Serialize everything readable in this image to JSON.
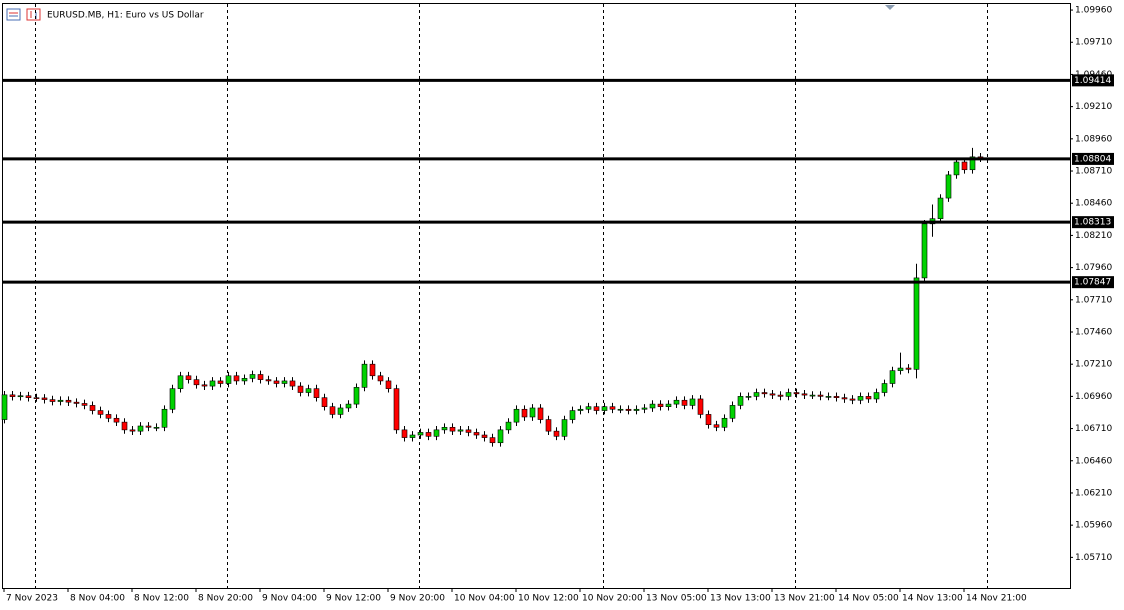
{
  "chart_data": {
    "type": "candlestick",
    "title": "EURUSD.MB, H1:  Euro vs US Dollar",
    "up_color": "#00d200",
    "down_color": "#ff0000",
    "grid": false,
    "categories": [
      "7 Nov 2023",
      null,
      null,
      null,
      null,
      null,
      null,
      null,
      "8 Nov 04:00",
      null,
      null,
      null,
      null,
      null,
      null,
      null,
      "8 Nov 12:00",
      null,
      null,
      null,
      null,
      null,
      null,
      null,
      "8 Nov 20:00",
      null,
      null,
      null,
      null,
      null,
      null,
      null,
      "9 Nov 04:00",
      null,
      null,
      null,
      null,
      null,
      null,
      null,
      "9 Nov 12:00",
      null,
      null,
      null,
      null,
      null,
      null,
      null,
      "9 Nov 20:00",
      null,
      null,
      null,
      null,
      null,
      null,
      null,
      "10 Nov 04:00",
      null,
      null,
      null,
      null,
      null,
      null,
      null,
      "10 Nov 12:00",
      null,
      null,
      null,
      null,
      null,
      null,
      null,
      "10 Nov 20:00",
      null,
      null,
      null,
      null,
      null,
      null,
      null,
      "13 Nov 05:00",
      null,
      null,
      null,
      null,
      null,
      null,
      null,
      "13 Nov 13:00",
      null,
      null,
      null,
      null,
      null,
      null,
      null,
      "13 Nov 21:00",
      null,
      null,
      null,
      null,
      null,
      null,
      null,
      "14 Nov 05:00",
      null,
      null,
      null,
      null,
      null,
      null,
      null,
      "14 Nov 13:00",
      null,
      null,
      null,
      null,
      null,
      null,
      null,
      "14 Nov 21:00",
      null,
      null
    ],
    "open": [
      1.0678,
      1.06972,
      1.06958,
      1.06965,
      1.0695,
      1.06948,
      1.06935,
      1.0692,
      1.0693,
      1.06915,
      1.06905,
      1.0689,
      1.0685,
      1.0682,
      1.0679,
      1.0676,
      1.067,
      1.0669,
      1.0673,
      1.0672,
      1.0672,
      1.0686,
      1.0702,
      1.0712,
      1.0709,
      1.0705,
      1.0704,
      1.0708,
      1.0706,
      1.0712,
      1.0708,
      1.071,
      1.0713,
      1.0709,
      1.0708,
      1.0706,
      1.0708,
      1.0704,
      1.0699,
      1.0702,
      1.0695,
      1.0688,
      1.0682,
      1.0687,
      1.069,
      1.0703,
      1.0721,
      1.0712,
      1.0708,
      1.0702,
      1.067,
      1.0664,
      1.0666,
      1.0668,
      1.0665,
      1.067,
      1.0672,
      1.0669,
      1.067,
      1.0668,
      1.0666,
      1.0664,
      1.066,
      1.067,
      1.0676,
      1.0686,
      1.068,
      1.0687,
      1.0678,
      1.0669,
      1.0665,
      1.0678,
      1.0685,
      1.0686,
      1.0688,
      1.0685,
      1.0688,
      1.0686,
      1.0686,
      1.0685,
      1.0686,
      1.0687,
      1.069,
      1.0688,
      1.069,
      1.0693,
      1.0689,
      1.0694,
      1.0682,
      1.0674,
      1.0672,
      1.0679,
      1.0689,
      1.0696,
      1.0696,
      1.0699,
      1.0698,
      1.0697,
      1.0696,
      1.0699,
      1.0698,
      1.0697,
      1.0697,
      1.0696,
      1.0696,
      1.0695,
      1.0694,
      1.0693,
      1.0696,
      1.0694,
      1.0699,
      1.0706,
      1.0716,
      1.0718,
      1.0717,
      1.0788,
      1.083,
      1.0834,
      1.085,
      1.0868,
      1.0878,
      1.0872,
      1.0882
    ],
    "high": [
      1.07002,
      1.07002,
      1.06995,
      1.06995,
      1.0698,
      1.06978,
      1.06965,
      1.0696,
      1.0696,
      1.06945,
      1.06935,
      1.0692,
      1.0688,
      1.0685,
      1.0682,
      1.0679,
      1.0673,
      1.0676,
      1.0676,
      1.0675,
      1.0689,
      1.0705,
      1.0715,
      1.0715,
      1.0712,
      1.0708,
      1.0711,
      1.0711,
      1.0715,
      1.0715,
      1.0713,
      1.0716,
      1.0716,
      1.0712,
      1.0711,
      1.0711,
      1.0711,
      1.0707,
      1.0705,
      1.0705,
      1.0698,
      1.0691,
      1.069,
      1.0693,
      1.0706,
      1.0724,
      1.0724,
      1.0715,
      1.0711,
      1.0705,
      1.0673,
      1.0669,
      1.0671,
      1.0671,
      1.0673,
      1.0675,
      1.0675,
      1.0673,
      1.0673,
      1.0671,
      1.0669,
      1.0667,
      1.0673,
      1.0679,
      1.0689,
      1.0689,
      1.069,
      1.069,
      1.0681,
      1.0672,
      1.0681,
      1.0688,
      1.0689,
      1.0691,
      1.0691,
      1.0691,
      1.0691,
      1.0689,
      1.0689,
      1.0689,
      1.069,
      1.0693,
      1.0693,
      1.0693,
      1.0696,
      1.0696,
      1.0697,
      1.0697,
      1.0685,
      1.0677,
      1.0682,
      1.0692,
      1.0699,
      1.0699,
      1.0702,
      1.0702,
      1.0701,
      1.07,
      1.0702,
      1.0702,
      1.0701,
      1.07,
      1.07,
      1.0699,
      1.0699,
      1.0698,
      1.0697,
      1.0699,
      1.0699,
      1.0702,
      1.0709,
      1.0719,
      1.073,
      1.0721,
      1.0799,
      1.0833,
      1.0845,
      1.0853,
      1.0871,
      1.0881,
      1.0881,
      1.0889,
      1.0885
    ],
    "low": [
      1.0675,
      1.06928,
      1.06928,
      1.0692,
      1.06918,
      1.06905,
      1.0689,
      1.0689,
      1.06885,
      1.06875,
      1.0686,
      1.0682,
      1.0679,
      1.0676,
      1.0673,
      1.0667,
      1.0666,
      1.0666,
      1.0669,
      1.0669,
      1.0669,
      1.0683,
      1.0699,
      1.0706,
      1.0702,
      1.0701,
      1.0701,
      1.0703,
      1.0703,
      1.0705,
      1.0705,
      1.0707,
      1.0706,
      1.0705,
      1.0703,
      1.0703,
      1.0701,
      1.0696,
      1.0696,
      1.0692,
      1.0685,
      1.0679,
      1.0679,
      1.0684,
      1.0687,
      1.07,
      1.0709,
      1.0705,
      1.0699,
      1.0667,
      1.0661,
      1.0661,
      1.0663,
      1.0662,
      1.0662,
      1.0667,
      1.0666,
      1.0666,
      1.0665,
      1.0663,
      1.0661,
      1.0657,
      1.0657,
      1.0667,
      1.0673,
      1.0677,
      1.0677,
      1.0675,
      1.0666,
      1.0662,
      1.0662,
      1.0675,
      1.0682,
      1.0683,
      1.0682,
      1.0682,
      1.0683,
      1.0683,
      1.0682,
      1.0682,
      1.0683,
      1.0684,
      1.0685,
      1.0685,
      1.0687,
      1.0686,
      1.0686,
      1.0679,
      1.0671,
      1.0669,
      1.0669,
      1.0676,
      1.0686,
      1.0693,
      1.0693,
      1.0695,
      1.0694,
      1.0693,
      1.0693,
      1.0695,
      1.0694,
      1.0694,
      1.0693,
      1.0693,
      1.0692,
      1.0691,
      1.069,
      1.069,
      1.0691,
      1.0691,
      1.0696,
      1.0703,
      1.0713,
      1.0714,
      1.071,
      1.0785,
      1.082,
      1.0831,
      1.0847,
      1.0865,
      1.0869,
      1.0869,
      1.0878
    ],
    "close": [
      1.06972,
      1.06958,
      1.06965,
      1.0695,
      1.06948,
      1.06935,
      1.0692,
      1.0693,
      1.06915,
      1.06905,
      1.0689,
      1.0685,
      1.0682,
      1.0679,
      1.0676,
      1.067,
      1.0669,
      1.0673,
      1.0672,
      1.0672,
      1.0686,
      1.0702,
      1.0712,
      1.0709,
      1.0705,
      1.0704,
      1.0708,
      1.0706,
      1.0712,
      1.0708,
      1.071,
      1.0713,
      1.0709,
      1.0708,
      1.0706,
      1.0708,
      1.0704,
      1.0699,
      1.0702,
      1.0695,
      1.0688,
      1.0682,
      1.0687,
      1.069,
      1.0703,
      1.0721,
      1.0712,
      1.0708,
      1.0702,
      1.067,
      1.0664,
      1.0666,
      1.0668,
      1.0665,
      1.067,
      1.0672,
      1.0669,
      1.067,
      1.0668,
      1.0666,
      1.0664,
      1.066,
      1.067,
      1.0676,
      1.0686,
      1.068,
      1.0687,
      1.0678,
      1.0669,
      1.0665,
      1.0678,
      1.0685,
      1.0686,
      1.0688,
      1.0685,
      1.0688,
      1.0686,
      1.0686,
      1.0685,
      1.0686,
      1.0687,
      1.069,
      1.0688,
      1.069,
      1.0693,
      1.0689,
      1.0694,
      1.0682,
      1.0674,
      1.0672,
      1.0679,
      1.0689,
      1.0696,
      1.0696,
      1.0699,
      1.0698,
      1.0697,
      1.0696,
      1.0699,
      1.0698,
      1.0697,
      1.0697,
      1.0696,
      1.0696,
      1.0695,
      1.0694,
      1.0693,
      1.0696,
      1.0694,
      1.0699,
      1.0706,
      1.0716,
      1.0718,
      1.0717,
      1.0788,
      1.083,
      1.0834,
      1.085,
      1.0868,
      1.0878,
      1.0872,
      1.0882,
      1.0881
    ],
    "ylim": [
      1.05472,
      1.10007
    ],
    "yticks": [
      {
        "value": 1.0996,
        "label": "1.09960"
      },
      {
        "value": 1.0971,
        "label": "1.09710"
      },
      {
        "value": 1.0946,
        "label": "1.09460"
      },
      {
        "value": 1.0921,
        "label": "1.09210"
      },
      {
        "value": 1.0896,
        "label": "1.08960"
      },
      {
        "value": 1.0871,
        "label": "1.08710"
      },
      {
        "value": 1.0846,
        "label": "1.08460"
      },
      {
        "value": 1.0821,
        "label": "1.08210"
      },
      {
        "value": 1.0796,
        "label": "1.07960"
      },
      {
        "value": 1.0771,
        "label": "1.07710"
      },
      {
        "value": 1.0746,
        "label": "1.07460"
      },
      {
        "value": 1.0721,
        "label": "1.07210"
      },
      {
        "value": 1.0696,
        "label": "1.06960"
      },
      {
        "value": 1.0671,
        "label": "1.06710"
      },
      {
        "value": 1.0646,
        "label": "1.06460"
      },
      {
        "value": 1.0621,
        "label": "1.06210"
      },
      {
        "value": 1.0596,
        "label": "1.05960"
      },
      {
        "value": 1.0571,
        "label": "1.05710"
      }
    ],
    "levels": [
      1.09414,
      1.08804,
      1.08313,
      1.07847
    ]
  }
}
